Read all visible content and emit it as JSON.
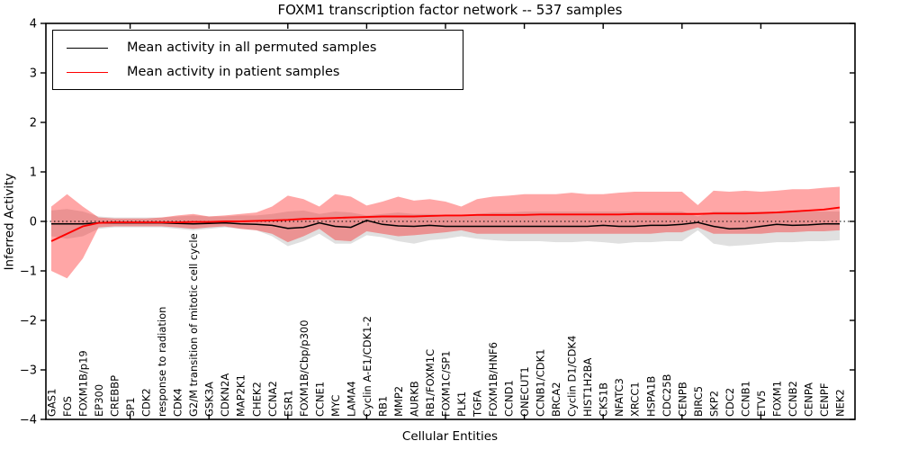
{
  "title": "FOXM1 transcription factor network -- 537 samples",
  "xlabel": "Cellular Entities",
  "ylabel": "Inferred Activity",
  "legend": [
    {
      "label": "Mean activity in all permuted samples",
      "color": "#000000"
    },
    {
      "label": "Mean activity in patient samples",
      "color": "#ff0000"
    }
  ],
  "chart_data": {
    "type": "line",
    "title": "FOXM1 transcription factor network -- 537 samples",
    "xlabel": "Cellular Entities",
    "ylabel": "Inferred Activity",
    "ylim": [
      -4,
      4
    ],
    "yticks": [
      4,
      3,
      2,
      1,
      0,
      -1,
      -2,
      -3,
      -4
    ],
    "grid": false,
    "zero_line_style": "dotted",
    "legend_position": "upper left",
    "categories": [
      "GAS1",
      "FOS",
      "FOXM1B/p19",
      "EP300",
      "CREBBP",
      "SP1",
      "CDK2",
      "response to radiation",
      "CDK4",
      "G2/M transition of mitotic cell cycle",
      "GSK3A",
      "CDKN2A",
      "MAP2K1",
      "CHEK2",
      "CCNA2",
      "ESR1",
      "FOXM1B/Cbp/p300",
      "CCNE1",
      "MYC",
      "LAMA4",
      "Cyclin A-E1/CDK1-2",
      "RB1",
      "MMP2",
      "AURKB",
      "RB1/FOXM1C",
      "FOXM1C/SP1",
      "PLK1",
      "TGFA",
      "FOXM1B/HNF6",
      "CCND1",
      "ONECUT1",
      "CCNB1/CDK1",
      "BRCA2",
      "Cyclin D1/CDK4",
      "HIST1H2BA",
      "CKS1B",
      "NFATC3",
      "XRCC1",
      "HSPA1B",
      "CDC25B",
      "CENPB",
      "BIRC5",
      "SKP2",
      "CDC2",
      "CCNB1",
      "ETV5",
      "FOXM1",
      "CCNB2",
      "CENPA",
      "CENPF",
      "NEK2"
    ],
    "series": [
      {
        "name": "Mean activity in all permuted samples",
        "color": "#000000",
        "values": [
          -0.05,
          -0.05,
          -0.05,
          -0.03,
          -0.03,
          -0.03,
          -0.03,
          -0.03,
          -0.04,
          -0.05,
          -0.04,
          -0.03,
          -0.05,
          -0.06,
          -0.08,
          -0.14,
          -0.12,
          -0.03,
          -0.1,
          -0.12,
          0.02,
          -0.06,
          -0.09,
          -0.1,
          -0.08,
          -0.1,
          -0.1,
          -0.1,
          -0.1,
          -0.1,
          -0.1,
          -0.1,
          -0.1,
          -0.1,
          -0.1,
          -0.08,
          -0.1,
          -0.1,
          -0.08,
          -0.08,
          -0.06,
          -0.02,
          -0.1,
          -0.15,
          -0.14,
          -0.1,
          -0.06,
          -0.08,
          -0.07,
          -0.05,
          -0.05
        ]
      },
      {
        "name": "Mean activity in patient samples",
        "color": "#ff0000",
        "values": [
          -0.4,
          -0.25,
          -0.1,
          -0.03,
          -0.02,
          -0.02,
          -0.02,
          -0.02,
          -0.02,
          -0.01,
          -0.01,
          0.0,
          0.0,
          0.01,
          0.02,
          0.03,
          0.05,
          0.06,
          0.07,
          0.08,
          0.09,
          0.1,
          0.1,
          0.1,
          0.11,
          0.12,
          0.12,
          0.13,
          0.13,
          0.13,
          0.13,
          0.14,
          0.14,
          0.14,
          0.14,
          0.14,
          0.14,
          0.15,
          0.15,
          0.15,
          0.15,
          0.15,
          0.16,
          0.16,
          0.16,
          0.17,
          0.18,
          0.2,
          0.22,
          0.24,
          0.28
        ]
      }
    ],
    "bands": [
      {
        "name": "permuted samples range",
        "color": "rgba(0,0,0,0.12)",
        "hi": [
          0.22,
          0.25,
          0.2,
          0.1,
          0.08,
          0.08,
          0.08,
          0.08,
          0.1,
          0.12,
          0.1,
          0.1,
          0.12,
          0.12,
          0.15,
          0.2,
          0.22,
          0.15,
          0.2,
          0.18,
          0.12,
          0.15,
          0.18,
          0.15,
          0.15,
          0.12,
          0.1,
          0.15,
          0.18,
          0.18,
          0.2,
          0.2,
          0.2,
          0.2,
          0.2,
          0.2,
          0.2,
          0.2,
          0.2,
          0.2,
          0.2,
          0.1,
          0.2,
          0.2,
          0.2,
          0.2,
          0.2,
          0.2,
          0.2,
          0.2,
          0.2
        ],
        "lo": [
          -0.3,
          -0.35,
          -0.3,
          -0.15,
          -0.12,
          -0.12,
          -0.12,
          -0.12,
          -0.15,
          -0.18,
          -0.15,
          -0.12,
          -0.15,
          -0.18,
          -0.3,
          -0.5,
          -0.4,
          -0.25,
          -0.45,
          -0.45,
          -0.28,
          -0.32,
          -0.4,
          -0.45,
          -0.38,
          -0.35,
          -0.3,
          -0.35,
          -0.38,
          -0.4,
          -0.4,
          -0.4,
          -0.42,
          -0.42,
          -0.4,
          -0.42,
          -0.45,
          -0.42,
          -0.42,
          -0.4,
          -0.4,
          -0.18,
          -0.45,
          -0.5,
          -0.48,
          -0.45,
          -0.42,
          -0.42,
          -0.4,
          -0.4,
          -0.38
        ]
      },
      {
        "name": "patient samples range",
        "color": "rgba(255,0,0,0.35)",
        "hi": [
          0.3,
          0.55,
          0.3,
          0.08,
          0.06,
          0.06,
          0.06,
          0.08,
          0.12,
          0.15,
          0.1,
          0.12,
          0.15,
          0.18,
          0.3,
          0.52,
          0.45,
          0.3,
          0.55,
          0.5,
          0.32,
          0.4,
          0.5,
          0.42,
          0.45,
          0.4,
          0.3,
          0.45,
          0.5,
          0.52,
          0.55,
          0.55,
          0.55,
          0.58,
          0.55,
          0.55,
          0.58,
          0.6,
          0.6,
          0.6,
          0.6,
          0.33,
          0.62,
          0.6,
          0.62,
          0.6,
          0.62,
          0.65,
          0.65,
          0.68,
          0.7
        ],
        "lo": [
          -1.0,
          -1.15,
          -0.75,
          -0.12,
          -0.1,
          -0.1,
          -0.1,
          -0.1,
          -0.12,
          -0.15,
          -0.12,
          -0.1,
          -0.15,
          -0.18,
          -0.25,
          -0.42,
          -0.3,
          -0.15,
          -0.38,
          -0.4,
          -0.2,
          -0.25,
          -0.3,
          -0.28,
          -0.25,
          -0.22,
          -0.18,
          -0.25,
          -0.25,
          -0.25,
          -0.25,
          -0.25,
          -0.25,
          -0.25,
          -0.25,
          -0.25,
          -0.25,
          -0.25,
          -0.25,
          -0.22,
          -0.22,
          -0.12,
          -0.25,
          -0.25,
          -0.25,
          -0.25,
          -0.22,
          -0.22,
          -0.2,
          -0.2,
          -0.18
        ]
      }
    ]
  }
}
